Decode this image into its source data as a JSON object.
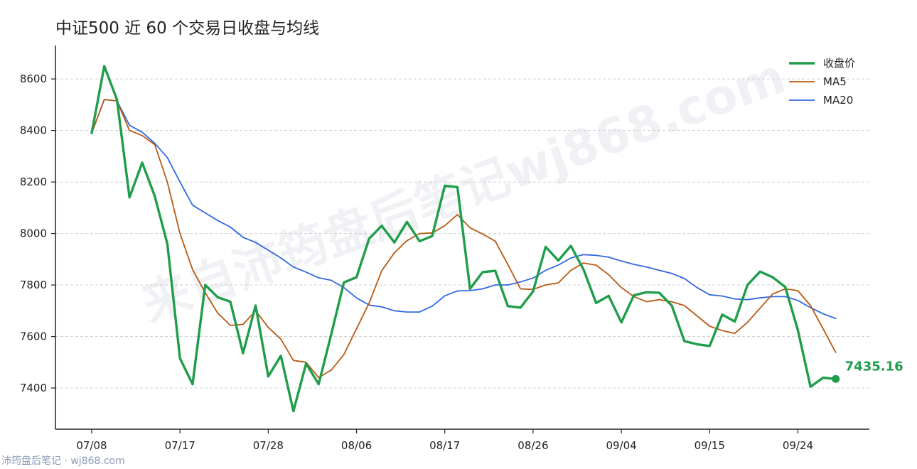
{
  "title": "中证500 近 60 个交易日收盘与均线",
  "footer": "沛筠盘后笔记 · wj868.com",
  "watermark": "来自沛筠盘后笔记wj868.com",
  "colors": {
    "close": "#1f9d4a",
    "ma5": "#b85a12",
    "ma20": "#3168e0",
    "grid": "#d0d0d0",
    "axis": "#222222"
  },
  "chart_data": {
    "type": "line",
    "title": "中证500 近 60 个交易日收盘与均线",
    "xlabel": "",
    "ylabel": "",
    "ylim": [
      7240,
      8730
    ],
    "yticks": [
      7400,
      7600,
      7800,
      8000,
      8200,
      8400,
      8600
    ],
    "xtick_labels": [
      "07/08",
      "07/17",
      "07/28",
      "08/06",
      "08/17",
      "08/26",
      "09/04",
      "09/15",
      "09/24"
    ],
    "xtick_index": [
      0,
      7,
      14,
      21,
      28,
      35,
      42,
      49,
      56
    ],
    "grid": "horizontal dashed",
    "legend_position": "top-right",
    "last_value_label": "7435.16",
    "series": [
      {
        "name": "收盘价",
        "values": [
          8390,
          8650,
          8520,
          8140,
          8275,
          8145,
          7960,
          7515,
          7415,
          7800,
          7752,
          7735,
          7535,
          7720,
          7445,
          7525,
          7310,
          7495,
          7415,
          7610,
          7810,
          7830,
          7980,
          8030,
          7965,
          8045,
          7970,
          7990,
          8185,
          8180,
          7785,
          7850,
          7855,
          7718,
          7712,
          7775,
          7948,
          7895,
          7952,
          7860,
          7730,
          7758,
          7655,
          7760,
          7772,
          7770,
          7720,
          7582,
          7570,
          7563,
          7685,
          7658,
          7800,
          7852,
          7830,
          7792,
          7625,
          7405,
          7440,
          7435.16
        ]
      },
      {
        "name": "MA5",
        "values": [
          8390,
          8520,
          8515,
          8400,
          8380,
          8345,
          8200,
          8000,
          7860,
          7770,
          7690,
          7643,
          7647,
          7700,
          7635,
          7590,
          7507,
          7500,
          7440,
          7470,
          7530,
          7630,
          7730,
          7855,
          7925,
          7972,
          8000,
          8002,
          8030,
          8073,
          8022,
          7998,
          7970,
          7880,
          7785,
          7783,
          7800,
          7808,
          7857,
          7885,
          7877,
          7840,
          7790,
          7755,
          7735,
          7743,
          7735,
          7720,
          7680,
          7640,
          7623,
          7612,
          7655,
          7710,
          7765,
          7785,
          7778,
          7720,
          7630,
          7538
        ]
      },
      {
        "name": "MA20",
        "values": [
          8390,
          8520,
          8515,
          8420,
          8393,
          8350,
          8295,
          8200,
          8110,
          8080,
          8050,
          8025,
          7985,
          7965,
          7935,
          7905,
          7870,
          7850,
          7828,
          7818,
          7790,
          7750,
          7722,
          7715,
          7700,
          7695,
          7695,
          7718,
          7758,
          7777,
          7778,
          7785,
          7800,
          7800,
          7812,
          7827,
          7857,
          7877,
          7905,
          7918,
          7915,
          7908,
          7893,
          7880,
          7870,
          7857,
          7845,
          7825,
          7790,
          7762,
          7757,
          7746,
          7743,
          7750,
          7755,
          7755,
          7740,
          7712,
          7688,
          7670
        ]
      }
    ]
  }
}
